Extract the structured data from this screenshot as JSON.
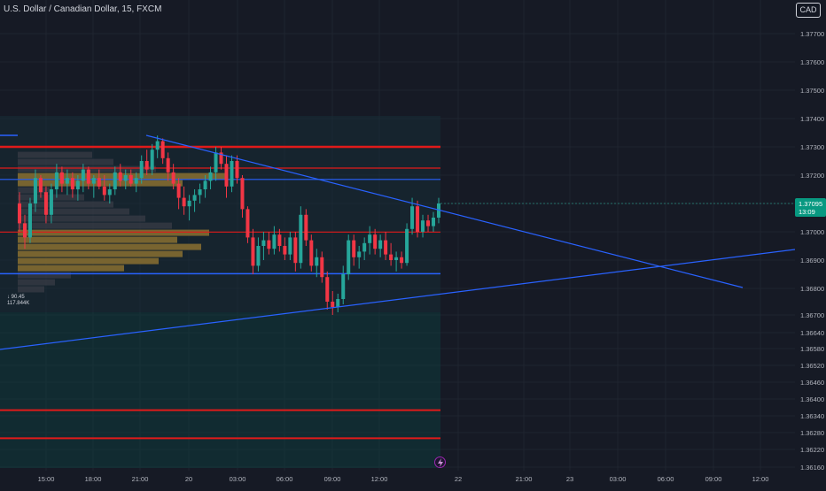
{
  "header": {
    "symbol_title": "U.S. Dollar / Canadian Dollar, 15, FXCM"
  },
  "toolbar": {
    "currency_label": "CAD"
  },
  "volume_profile": {
    "price_label": "↓ 90.45",
    "volume_label": "117.844K"
  },
  "last_price": {
    "price": "1.37095",
    "countdown": "13:09"
  },
  "colors": {
    "up": "#26a69a",
    "down": "#f23645",
    "trendline": "#2962ff",
    "level": "#e01a1a",
    "vp": "#8a7030"
  },
  "y_axis": {
    "ticks": [
      "1.37700",
      "1.37600",
      "1.37500",
      "1.37400",
      "1.37300",
      "1.37200",
      "1.37100",
      "1.37000",
      "1.36900",
      "1.36800",
      "1.36700",
      "1.36640",
      "1.36580",
      "1.36520",
      "1.36460",
      "1.36400",
      "1.36340",
      "1.36280",
      "1.36220",
      "1.36160"
    ]
  },
  "x_axis": {
    "ticks": [
      "15:00",
      "18:00",
      "21:00",
      "20",
      "03:00",
      "06:00",
      "09:00",
      "12:00",
      "22",
      "21:00",
      "23",
      "03:00",
      "06:00",
      "09:00",
      "12:00"
    ]
  },
  "drawings": {
    "horizontal_levels": [
      1.373,
      1.37225,
      1.37185,
      1.36999,
      1.36852,
      1.3636,
      1.3626
    ],
    "descending_trendline": {
      "from": [
        "21:00",
        1.3734
      ],
      "to": [
        "09:00",
        1.368
      ]
    },
    "ascending_trendline": {
      "from": [
        "12:00",
        1.3658
      ],
      "to": [
        "12:00",
        1.3693
      ]
    }
  },
  "candles": [
    [
      1.371,
      1.3714,
      1.37,
      1.3703
    ],
    [
      1.3703,
      1.3706,
      1.3694,
      1.3698
    ],
    [
      1.3698,
      1.3712,
      1.3696,
      1.371
    ],
    [
      1.371,
      1.3722,
      1.3707,
      1.3719
    ],
    [
      1.3719,
      1.372,
      1.3712,
      1.3714
    ],
    [
      1.3714,
      1.3716,
      1.3703,
      1.3706
    ],
    [
      1.3706,
      1.3717,
      1.3703,
      1.3715
    ],
    [
      1.3715,
      1.3724,
      1.3712,
      1.3721
    ],
    [
      1.3721,
      1.3723,
      1.3714,
      1.3717
    ],
    [
      1.3717,
      1.3722,
      1.3713,
      1.3719
    ],
    [
      1.3719,
      1.3721,
      1.3712,
      1.3715
    ],
    [
      1.3715,
      1.372,
      1.3711,
      1.3718
    ],
    [
      1.3718,
      1.3724,
      1.3714,
      1.3722
    ],
    [
      1.3722,
      1.3723,
      1.3715,
      1.3717
    ],
    [
      1.3717,
      1.372,
      1.3712,
      1.3719
    ],
    [
      1.3719,
      1.3722,
      1.3715,
      1.3716
    ],
    [
      1.3716,
      1.372,
      1.3711,
      1.3713
    ],
    [
      1.3713,
      1.3717,
      1.371,
      1.3715
    ],
    [
      1.3715,
      1.3723,
      1.3713,
      1.3721
    ],
    [
      1.3721,
      1.3724,
      1.3716,
      1.3718
    ],
    [
      1.3718,
      1.3722,
      1.3715,
      1.372
    ],
    [
      1.372,
      1.3722,
      1.3716,
      1.3717
    ],
    [
      1.3717,
      1.3721,
      1.3714,
      1.3719
    ],
    [
      1.3719,
      1.3727,
      1.3717,
      1.3725
    ],
    [
      1.3725,
      1.3729,
      1.372,
      1.3722
    ],
    [
      1.3722,
      1.3731,
      1.372,
      1.3729
    ],
    [
      1.3729,
      1.3734,
      1.3726,
      1.3732
    ],
    [
      1.3732,
      1.3733,
      1.3724,
      1.3726
    ],
    [
      1.3726,
      1.3728,
      1.3718,
      1.3721
    ],
    [
      1.3721,
      1.3724,
      1.3715,
      1.3717
    ],
    [
      1.3717,
      1.3719,
      1.3708,
      1.3712
    ],
    [
      1.3712,
      1.3716,
      1.3706,
      1.3709
    ],
    [
      1.3709,
      1.3713,
      1.3704,
      1.3711
    ],
    [
      1.3711,
      1.3715,
      1.3707,
      1.3713
    ],
    [
      1.3713,
      1.3717,
      1.371,
      1.3715
    ],
    [
      1.3715,
      1.372,
      1.3712,
      1.3718
    ],
    [
      1.3718,
      1.3723,
      1.3715,
      1.3721
    ],
    [
      1.3721,
      1.373,
      1.3718,
      1.3728
    ],
    [
      1.3728,
      1.373,
      1.3722,
      1.3724
    ],
    [
      1.3724,
      1.3727,
      1.3712,
      1.3716
    ],
    [
      1.3716,
      1.3727,
      1.3714,
      1.3725
    ],
    [
      1.3725,
      1.3727,
      1.3717,
      1.3719
    ],
    [
      1.3719,
      1.372,
      1.3705,
      1.3708
    ],
    [
      1.3708,
      1.3709,
      1.3696,
      1.3698
    ],
    [
      1.3698,
      1.3701,
      1.3685,
      1.3688
    ],
    [
      1.3688,
      1.3698,
      1.3686,
      1.3695
    ],
    [
      1.3695,
      1.37,
      1.369,
      1.3697
    ],
    [
      1.3697,
      1.37,
      1.3692,
      1.3694
    ],
    [
      1.3694,
      1.3702,
      1.3692,
      1.3699
    ],
    [
      1.3699,
      1.3701,
      1.3693,
      1.3695
    ],
    [
      1.3695,
      1.3698,
      1.369,
      1.3692
    ],
    [
      1.3692,
      1.37,
      1.369,
      1.3698
    ],
    [
      1.3698,
      1.37,
      1.3686,
      1.3689
    ],
    [
      1.3689,
      1.3709,
      1.3687,
      1.3706
    ],
    [
      1.3706,
      1.3708,
      1.3695,
      1.3697
    ],
    [
      1.3697,
      1.3699,
      1.3686,
      1.3688
    ],
    [
      1.3688,
      1.3694,
      1.3684,
      1.3691
    ],
    [
      1.3691,
      1.3693,
      1.3682,
      1.3684
    ],
    [
      1.3684,
      1.3686,
      1.3672,
      1.3675
    ],
    [
      1.3675,
      1.3679,
      1.367,
      1.3673
    ],
    [
      1.3673,
      1.3678,
      1.3671,
      1.3676
    ],
    [
      1.3676,
      1.3688,
      1.3674,
      1.3685
    ],
    [
      1.3685,
      1.3699,
      1.3683,
      1.3697
    ],
    [
      1.3697,
      1.3699,
      1.3688,
      1.3691
    ],
    [
      1.3691,
      1.3695,
      1.3687,
      1.3693
    ],
    [
      1.3693,
      1.3698,
      1.369,
      1.3696
    ],
    [
      1.3696,
      1.3702,
      1.3692,
      1.3699
    ],
    [
      1.3699,
      1.3701,
      1.3692,
      1.3694
    ],
    [
      1.3694,
      1.3699,
      1.3691,
      1.3697
    ],
    [
      1.3697,
      1.37,
      1.369,
      1.3692
    ],
    [
      1.3692,
      1.3696,
      1.3688,
      1.369
    ],
    [
      1.369,
      1.3693,
      1.3686,
      1.3691
    ],
    [
      1.3691,
      1.3693,
      1.3687,
      1.3689
    ],
    [
      1.3689,
      1.3703,
      1.3688,
      1.3701
    ],
    [
      1.3701,
      1.3712,
      1.3699,
      1.3709
    ],
    [
      1.3709,
      1.3711,
      1.3698,
      1.37
    ],
    [
      1.37,
      1.3706,
      1.3698,
      1.3704
    ],
    [
      1.3704,
      1.3706,
      1.37,
      1.3702
    ],
    [
      1.3702,
      1.3707,
      1.37,
      1.3705
    ],
    [
      1.3705,
      1.3712,
      1.3703,
      1.371
    ]
  ],
  "vp_bars": [
    [
      1.37145,
      0.12,
      "dark"
    ],
    [
      1.3712,
      0.25,
      "dark"
    ],
    [
      1.37095,
      0.36,
      "dark"
    ],
    [
      1.3707,
      0.42,
      "dark"
    ],
    [
      1.37045,
      0.48,
      "dark"
    ],
    [
      1.3702,
      0.58,
      "dark"
    ],
    [
      1.36995,
      0.72,
      "poc"
    ],
    [
      1.3697,
      0.6,
      "gold"
    ],
    [
      1.36945,
      0.69,
      "gold"
    ],
    [
      1.3692,
      0.62,
      "gold"
    ],
    [
      1.36895,
      0.53,
      "gold"
    ],
    [
      1.3687,
      0.4,
      "gold"
    ],
    [
      1.3717,
      0.62,
      "gold"
    ],
    [
      1.37195,
      0.78,
      "gold"
    ],
    [
      1.3722,
      0.52,
      "dark"
    ],
    [
      1.37245,
      0.36,
      "dark"
    ],
    [
      1.3727,
      0.28,
      "dark"
    ],
    [
      1.36845,
      0.2,
      "dark"
    ],
    [
      1.3682,
      0.14,
      "dark"
    ],
    [
      1.36795,
      0.1,
      "dark"
    ]
  ]
}
